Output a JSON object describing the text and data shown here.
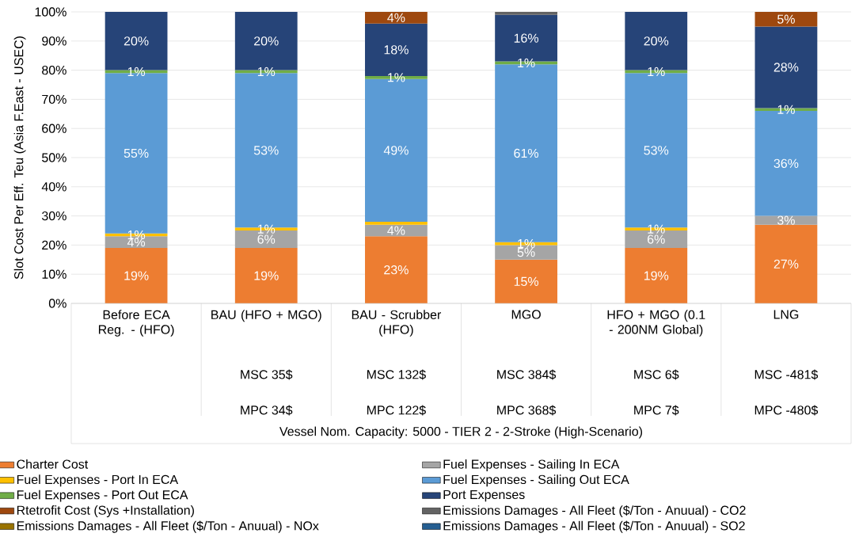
{
  "chart_data": {
    "type": "bar",
    "stacked": true,
    "ylabel": "Slot Cost Per Eff. Teu (Asia F.East - USEC)",
    "categories": [
      "Before ECA Reg. - (HFO)",
      "BAU (HFO + MGO)",
      "BAU - Scrubber (HFO)",
      "MGO",
      "HFO + MGO (0.1 - 200NM Global)",
      "LNG"
    ],
    "series": [
      {
        "name": "Charter Cost",
        "color": "#ed7d31",
        "values": [
          19,
          19,
          23,
          15,
          19,
          27
        ],
        "value_labels": [
          "19%",
          "19%",
          "23%",
          "15%",
          "19%",
          "27%"
        ]
      },
      {
        "name": "Fuel Expenses  - Sailing In ECA",
        "color": "#a5a5a5",
        "values": [
          4,
          6,
          4,
          5,
          6,
          3
        ],
        "value_labels": [
          "4%",
          "6%",
          "4%",
          "5%",
          "6%",
          "3%"
        ]
      },
      {
        "name": "Fuel Expenses  - Port In ECA",
        "color": "#ffc000",
        "values": [
          1,
          1,
          1,
          1,
          1,
          null
        ],
        "value_labels": [
          "1%",
          "1%",
          null,
          "1%",
          "1%",
          null
        ]
      },
      {
        "name": "Fuel Expenses  - Sailing Out ECA",
        "color": "#5b9bd5",
        "values": [
          55,
          53,
          49,
          61,
          53,
          36
        ],
        "value_labels": [
          "55%",
          "53%",
          "49%",
          "61%",
          "53%",
          "36%"
        ]
      },
      {
        "name": "Fuel Expenses  - Port Out ECA",
        "color": "#70ad47",
        "values": [
          1,
          1,
          1,
          1,
          1,
          1
        ],
        "value_labels": [
          "1%",
          "1%",
          "1%",
          "1%",
          "1%",
          "1%"
        ]
      },
      {
        "name": "Port Expenses",
        "color": "#264478",
        "values": [
          20,
          20,
          18,
          16,
          20,
          28
        ],
        "value_labels": [
          "20%",
          "20%",
          "18%",
          "16%",
          "20%",
          "28%"
        ]
      },
      {
        "name": "Rtetrofit Cost (Sys +Installation)",
        "color": "#9e480e",
        "values": [
          null,
          null,
          4,
          null,
          null,
          5
        ],
        "value_labels": [
          null,
          null,
          "4%",
          null,
          null,
          "5%"
        ]
      },
      {
        "name": "Emissions Damages - All Fleet ($/Ton - Anuual) - CO2",
        "color": "#636363",
        "values": [
          null,
          null,
          null,
          1,
          null,
          null
        ]
      },
      {
        "name": "Emissions Damages -  All Fleet ($/Ton - Anuual) - NOx",
        "color": "#997300",
        "values": [
          null,
          null,
          null,
          null,
          null,
          null
        ]
      },
      {
        "name": "Emissions Damages -  All Fleet ($/Ton - Anuual) - SO2",
        "color": "#255e91",
        "values": [
          null,
          null,
          null,
          null,
          null,
          null
        ]
      }
    ],
    "ylim": [
      0,
      100
    ],
    "yticks": [
      {
        "value": 0,
        "label": "0%"
      },
      {
        "value": 10,
        "label": "10%"
      },
      {
        "value": 20,
        "label": "20%"
      },
      {
        "value": 30,
        "label": "30%"
      },
      {
        "value": 40,
        "label": "40%"
      },
      {
        "value": 50,
        "label": "50%"
      },
      {
        "value": 60,
        "label": "60%"
      },
      {
        "value": 70,
        "label": "70%"
      },
      {
        "value": 80,
        "label": "80%"
      },
      {
        "value": 90,
        "label": "90%"
      },
      {
        "value": 100,
        "label": "100%"
      }
    ],
    "grid": "y",
    "legend": "bottom",
    "annotations": [
      "MSC    35$",
      "MPC    34$",
      "MSC    132$",
      "MPC    122$",
      "MSC    384$",
      "MPC    368$",
      "MSC    6$",
      "MPC    7$",
      "MSC    -481$",
      "MPC    -480$",
      "Vessel Nom. Capacity:  5000 - TIER 2 -  2-Stroke   (High-Scenario)"
    ]
  }
}
